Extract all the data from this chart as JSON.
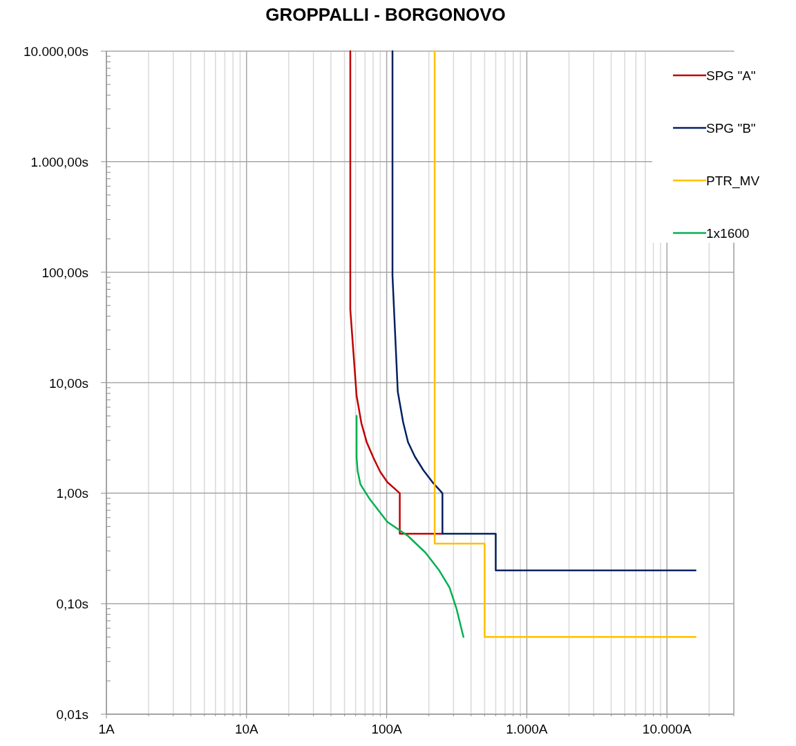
{
  "chart_data": {
    "type": "line",
    "title": "GROPPALLI - BORGONOVO",
    "log": "xy",
    "grid": true,
    "legend": "top right",
    "marker": "none",
    "line_style": "solid",
    "xlim": [
      1,
      30000
    ],
    "ylim": [
      0.01,
      10000
    ],
    "xticks": [
      {
        "value": 1,
        "label": "1A"
      },
      {
        "value": 2,
        "label": null
      },
      {
        "value": 3,
        "label": null
      },
      {
        "value": 4,
        "label": null
      },
      {
        "value": 5,
        "label": null
      },
      {
        "value": 6,
        "label": null
      },
      {
        "value": 7,
        "label": null
      },
      {
        "value": 8,
        "label": null
      },
      {
        "value": 9,
        "label": null
      },
      {
        "value": 10,
        "label": "10A"
      },
      {
        "value": 20,
        "label": null
      },
      {
        "value": 30,
        "label": null
      },
      {
        "value": 40,
        "label": null
      },
      {
        "value": 50,
        "label": null
      },
      {
        "value": 60,
        "label": null
      },
      {
        "value": 70,
        "label": null
      },
      {
        "value": 80,
        "label": null
      },
      {
        "value": 90,
        "label": null
      },
      {
        "value": 100,
        "label": "100A"
      },
      {
        "value": 200,
        "label": null
      },
      {
        "value": 300,
        "label": null
      },
      {
        "value": 400,
        "label": null
      },
      {
        "value": 500,
        "label": null
      },
      {
        "value": 600,
        "label": null
      },
      {
        "value": 700,
        "label": null
      },
      {
        "value": 800,
        "label": null
      },
      {
        "value": 900,
        "label": null
      },
      {
        "value": 1000,
        "label": "1.000A"
      },
      {
        "value": 2000,
        "label": null
      },
      {
        "value": 3000,
        "label": null
      },
      {
        "value": 4000,
        "label": null
      },
      {
        "value": 5000,
        "label": null
      },
      {
        "value": 6000,
        "label": null
      },
      {
        "value": 7000,
        "label": null
      },
      {
        "value": 8000,
        "label": null
      },
      {
        "value": 9000,
        "label": null
      },
      {
        "value": 10000,
        "label": "10.000A"
      },
      {
        "value": 20000,
        "label": null
      },
      {
        "value": 30000,
        "label": null
      }
    ],
    "yticks": [
      {
        "value": 0.01,
        "label": "0,01s"
      },
      {
        "value": 0.02,
        "label": null
      },
      {
        "value": 0.03,
        "label": null
      },
      {
        "value": 0.04,
        "label": null
      },
      {
        "value": 0.05,
        "label": null
      },
      {
        "value": 0.06,
        "label": null
      },
      {
        "value": 0.07,
        "label": null
      },
      {
        "value": 0.08,
        "label": null
      },
      {
        "value": 0.09,
        "label": null
      },
      {
        "value": 0.1,
        "label": "0,10s"
      },
      {
        "value": 0.2,
        "label": null
      },
      {
        "value": 0.3,
        "label": null
      },
      {
        "value": 0.4,
        "label": null
      },
      {
        "value": 0.5,
        "label": null
      },
      {
        "value": 0.6,
        "label": null
      },
      {
        "value": 0.7,
        "label": null
      },
      {
        "value": 0.8,
        "label": null
      },
      {
        "value": 0.9,
        "label": null
      },
      {
        "value": 1,
        "label": "1,00s"
      },
      {
        "value": 2,
        "label": null
      },
      {
        "value": 3,
        "label": null
      },
      {
        "value": 4,
        "label": null
      },
      {
        "value": 5,
        "label": null
      },
      {
        "value": 6,
        "label": null
      },
      {
        "value": 7,
        "label": null
      },
      {
        "value": 8,
        "label": null
      },
      {
        "value": 9,
        "label": null
      },
      {
        "value": 10,
        "label": "10,00s"
      },
      {
        "value": 20,
        "label": null
      },
      {
        "value": 30,
        "label": null
      },
      {
        "value": 40,
        "label": null
      },
      {
        "value": 50,
        "label": null
      },
      {
        "value": 60,
        "label": null
      },
      {
        "value": 70,
        "label": null
      },
      {
        "value": 80,
        "label": null
      },
      {
        "value": 90,
        "label": null
      },
      {
        "value": 100,
        "label": "100,00s"
      },
      {
        "value": 200,
        "label": null
      },
      {
        "value": 300,
        "label": null
      },
      {
        "value": 400,
        "label": null
      },
      {
        "value": 500,
        "label": null
      },
      {
        "value": 600,
        "label": null
      },
      {
        "value": 700,
        "label": null
      },
      {
        "value": 800,
        "label": null
      },
      {
        "value": 900,
        "label": null
      },
      {
        "value": 1000,
        "label": "1.000,00s"
      },
      {
        "value": 2000,
        "label": null
      },
      {
        "value": 3000,
        "label": null
      },
      {
        "value": 4000,
        "label": null
      },
      {
        "value": 5000,
        "label": null
      },
      {
        "value": 6000,
        "label": null
      },
      {
        "value": 7000,
        "label": null
      },
      {
        "value": 8000,
        "label": null
      },
      {
        "value": 9000,
        "label": null
      },
      {
        "value": 10000,
        "label": "10.000,00s"
      }
    ],
    "series": [
      {
        "name": "SPG \"A\"",
        "color": "#c00000",
        "x": [
          55,
          55,
          61,
          66,
          72,
          81,
          90,
          101,
          124,
          124,
          250
        ],
        "values": [
          10000,
          46,
          7.6,
          4.3,
          2.9,
          2.05,
          1.56,
          1.26,
          1,
          0.43,
          0.43
        ]
      },
      {
        "name": "SPG \"B\"",
        "color": "#002060",
        "x": [
          110,
          110,
          120,
          131,
          142,
          159,
          183,
          212,
          250,
          250,
          600,
          600,
          16000
        ],
        "values": [
          10000,
          93,
          8.3,
          4.4,
          2.9,
          2.14,
          1.61,
          1.26,
          1,
          0.43,
          0.43,
          0.2,
          0.2
        ]
      },
      {
        "name": "PTR_MV",
        "color": "#ffc000",
        "x": [
          220,
          220,
          500,
          500,
          16000
        ],
        "values": [
          10000,
          0.35,
          0.35,
          0.05,
          0.05
        ]
      },
      {
        "name": "1x1600",
        "color": "#00b050",
        "x": [
          61,
          61,
          62,
          65,
          75,
          101,
          142,
          189,
          237,
          281,
          315,
          353
        ],
        "values": [
          5,
          2.1,
          1.6,
          1.2,
          0.9,
          0.55,
          0.41,
          0.29,
          0.2,
          0.14,
          0.09,
          0.05
        ]
      }
    ]
  }
}
